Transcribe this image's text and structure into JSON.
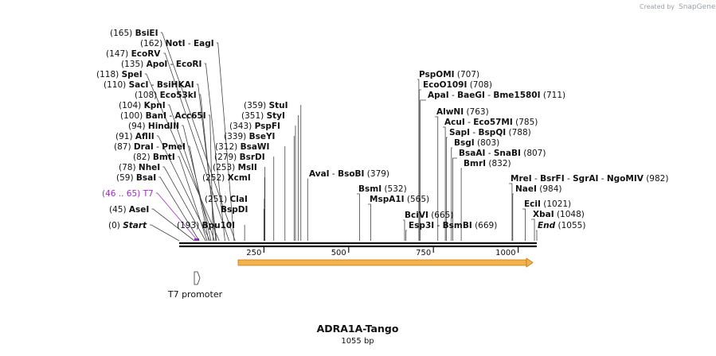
{
  "credit": {
    "created_by": "Created by",
    "brand": "SnapGene"
  },
  "map": {
    "name": "ADRA1A-Tango",
    "length_label": "1055 bp",
    "axis_ticks": [
      "250",
      "500",
      "750",
      "1000"
    ],
    "feature_arrow": {
      "color": "#f0a020"
    },
    "promoter_label": "T7 promoter",
    "colors": {
      "line": "#444444",
      "purple": "#9b30c8",
      "feature": "#f0a020"
    }
  },
  "left_labels": [
    {
      "pos": "(165)",
      "enzymes": [
        "BsiEI"
      ],
      "site": 165
    },
    {
      "pos": "(162)",
      "enzymes": [
        "NotI",
        "EagI"
      ],
      "site": 162
    },
    {
      "pos": "(147)",
      "enzymes": [
        "EcoRV"
      ],
      "site": 147
    },
    {
      "pos": "(135)",
      "enzymes": [
        "ApoI",
        "EcoRI"
      ],
      "site": 135
    },
    {
      "pos": "(118)",
      "enzymes": [
        "SpeI"
      ],
      "site": 118
    },
    {
      "pos": "(110)",
      "enzymes": [
        "SacI",
        "BsiHKAI"
      ],
      "site": 110
    },
    {
      "pos": "(108)",
      "enzymes": [
        "Eco53kI"
      ],
      "site": 108
    },
    {
      "pos": "(104)",
      "enzymes": [
        "KpnI"
      ],
      "site": 104
    },
    {
      "pos": "(100)",
      "enzymes": [
        "BanI",
        "Acc65I"
      ],
      "site": 100
    },
    {
      "pos": "(94)",
      "enzymes": [
        "HindIII"
      ],
      "site": 94
    },
    {
      "pos": "(91)",
      "enzymes": [
        "AflII"
      ],
      "site": 91
    },
    {
      "pos": "(87)",
      "enzymes": [
        "DraI",
        "PmeI"
      ],
      "site": 87
    },
    {
      "pos": "(82)",
      "enzymes": [
        "BmtI"
      ],
      "site": 82
    },
    {
      "pos": "(78)",
      "enzymes": [
        "NheI"
      ],
      "site": 78
    },
    {
      "pos": "(59)",
      "enzymes": [
        "BsaI"
      ],
      "site": 59
    },
    {
      "pos": "(46 .. 65)",
      "enzymes": [
        "T7"
      ],
      "site": 55,
      "purple": true
    },
    {
      "pos": "(45)",
      "enzymes": [
        "AseI"
      ],
      "site": 45
    },
    {
      "pos": "(0)",
      "enzymes": [
        "Start"
      ],
      "site": 0,
      "italic": true
    }
  ],
  "mid_labels": [
    {
      "pos": "(359)",
      "enzymes": [
        "StuI"
      ],
      "site": 359
    },
    {
      "pos": "(351)",
      "enzymes": [
        "StyI"
      ],
      "site": 351
    },
    {
      "pos": "(343)",
      "enzymes": [
        "PspFI"
      ],
      "site": 343
    },
    {
      "pos": "(339)",
      "enzymes": [
        "BseYI"
      ],
      "site": 339
    },
    {
      "pos": "(312)",
      "enzymes": [
        "BsaWI"
      ],
      "site": 312
    },
    {
      "pos": "(279)",
      "enzymes": [
        "BsrDI"
      ],
      "site": 279
    },
    {
      "pos": "(253)",
      "enzymes": [
        "MslI"
      ],
      "site": 253
    },
    {
      "pos": "(252)",
      "enzymes": [
        "XcmI"
      ],
      "site": 252
    },
    {
      "pos": "(251)",
      "enzymes": [
        "ClaI"
      ],
      "site": 251
    },
    {
      "pos": "",
      "enzymes": [
        "BspDI"
      ],
      "site": 250
    },
    {
      "pos": "(193)",
      "enzymes": [
        "Bpu10I"
      ],
      "site": 193
    }
  ],
  "right_labels": [
    {
      "pos": "(379)",
      "enzymes": [
        "AvaI",
        "BsoBI"
      ],
      "site": 379,
      "after": true
    },
    {
      "pos": "(532)",
      "enzymes": [
        "BsmI"
      ],
      "site": 532,
      "after": true
    },
    {
      "pos": "(565)",
      "enzymes": [
        "MspA1I"
      ],
      "site": 565,
      "after": true
    },
    {
      "pos": "(707)",
      "enzymes": [
        "PspOMI"
      ],
      "site": 707,
      "after": true
    },
    {
      "pos": "(708)",
      "enzymes": [
        "EcoO109I"
      ],
      "site": 708,
      "after": true
    },
    {
      "pos": "(711)",
      "enzymes": [
        "ApaI",
        "BaeGI",
        "Bme1580I"
      ],
      "site": 711,
      "after": true
    },
    {
      "pos": "(763)",
      "enzymes": [
        "AlwNI"
      ],
      "site": 763,
      "after": true
    },
    {
      "pos": "(785)",
      "enzymes": [
        "AcuI",
        "Eco57MI"
      ],
      "site": 785,
      "after": true
    },
    {
      "pos": "(788)",
      "enzymes": [
        "SapI",
        "BspQI"
      ],
      "site": 788,
      "after": true
    },
    {
      "pos": "(803)",
      "enzymes": [
        "BsgI"
      ],
      "site": 803,
      "after": true
    },
    {
      "pos": "(807)",
      "enzymes": [
        "BsaAI",
        "SnaBI"
      ],
      "site": 807,
      "after": true
    },
    {
      "pos": "(832)",
      "enzymes": [
        "BmrI"
      ],
      "site": 832,
      "after": true
    },
    {
      "pos": "(665)",
      "enzymes": [
        "BciVI"
      ],
      "site": 665,
      "after": true
    },
    {
      "pos": "(669)",
      "enzymes": [
        "Esp3I",
        "BsmBI"
      ],
      "site": 669,
      "after": true
    },
    {
      "pos": "(982)",
      "enzymes": [
        "MreI",
        "BsrFI",
        "SgrAI",
        "NgoMIV"
      ],
      "site": 982,
      "after": true
    },
    {
      "pos": "(984)",
      "enzymes": [
        "NaeI"
      ],
      "site": 984,
      "after": true
    },
    {
      "pos": "(1021)",
      "enzymes": [
        "EciI"
      ],
      "site": 1021,
      "after": true
    },
    {
      "pos": "(1048)",
      "enzymes": [
        "XbaI"
      ],
      "site": 1048,
      "after": true
    },
    {
      "pos": "(1055)",
      "enzymes": [
        "End"
      ],
      "site": 1055,
      "after": true,
      "italic": true
    }
  ]
}
